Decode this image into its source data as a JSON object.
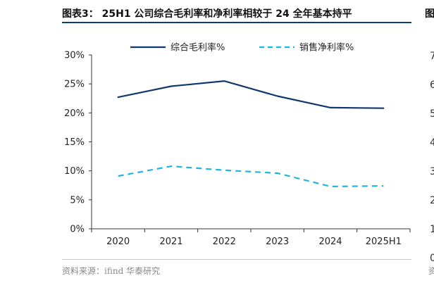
{
  "header": {
    "title": "图表3： 25H1 公司综合毛利率和净利率相较于 24 全年基本持平",
    "cutoff_glyph": "图"
  },
  "footer": {
    "source": "资料来源：ifind 华泰研究",
    "cutoff_glyph": "资"
  },
  "right_edge_digits": [
    "7",
    "6",
    "5",
    "4",
    "3",
    "2",
    "1",
    "0"
  ],
  "colors": {
    "accent": "#0b3c78",
    "gross_margin": "#10386b",
    "net_margin": "#1fb5e0",
    "axis": "#333333"
  },
  "chart_data": {
    "type": "line",
    "title": "",
    "xlabel": "",
    "ylabel": "",
    "categories": [
      "2020",
      "2021",
      "2022",
      "2023",
      "2024",
      "2025H1"
    ],
    "ylim": [
      0,
      30
    ],
    "yticks": [
      0,
      5,
      10,
      15,
      20,
      25,
      30
    ],
    "ytick_labels": [
      "0%",
      "5%",
      "10%",
      "15%",
      "20%",
      "25%",
      "30%"
    ],
    "grid": false,
    "legend_position": "top",
    "series": [
      {
        "name": "综合毛利率%",
        "values": [
          22.7,
          24.6,
          25.5,
          22.9,
          20.9,
          20.8
        ],
        "style": "solid",
        "color": "#10386b"
      },
      {
        "name": "销售净利率%",
        "values": [
          9.1,
          10.8,
          10.1,
          9.6,
          7.3,
          7.4
        ],
        "style": "dashed",
        "color": "#1fb5e0"
      }
    ]
  }
}
